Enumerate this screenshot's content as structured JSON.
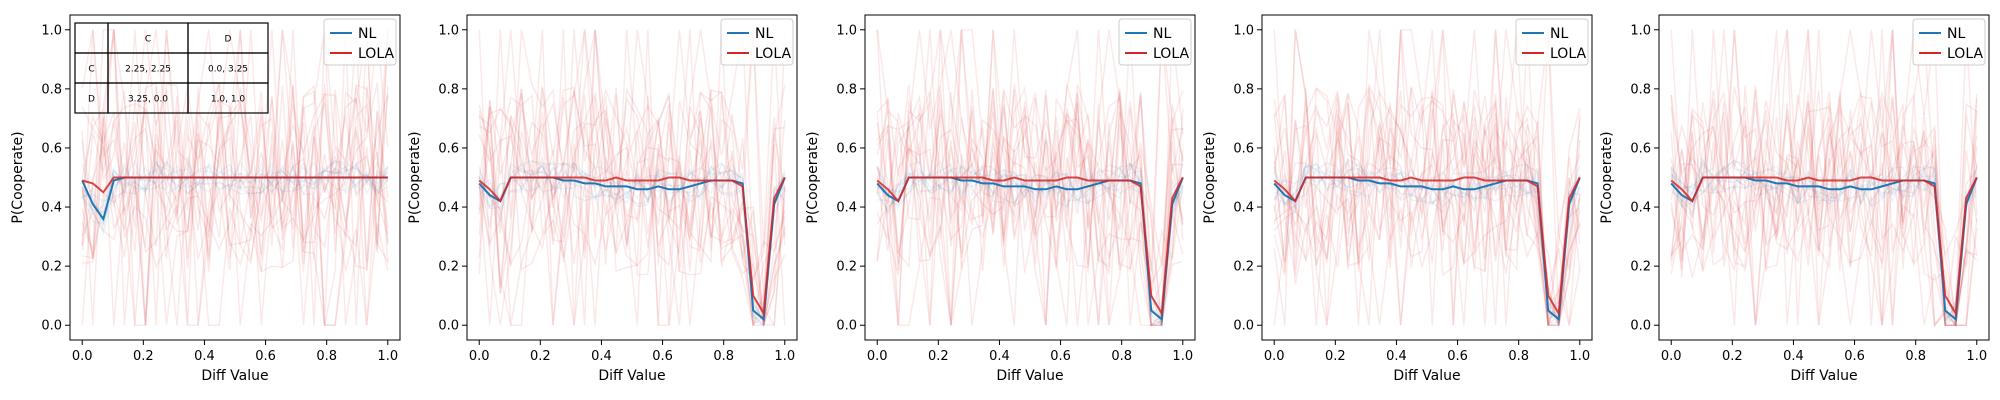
{
  "chart_data": [
    {
      "type": "line",
      "xlabel": "Diff Value",
      "ylabel": "P(Cooperate)",
      "xlim": [
        -0.04,
        1.04
      ],
      "ylim": [
        -0.05,
        1.05
      ],
      "xticks": [
        "0.0",
        "0.2",
        "0.4",
        "0.6",
        "0.8",
        "1.0"
      ],
      "yticks": [
        "0.0",
        "0.2",
        "0.4",
        "0.6",
        "0.8",
        "1.0"
      ],
      "legend": {
        "position": "top-right",
        "entries": [
          "NL",
          "LOLA"
        ]
      },
      "colors": {
        "NL": "#1f77b4",
        "LOLA": "#d62728"
      },
      "x": [
        0.0,
        0.0345,
        0.069,
        0.1034,
        0.1379,
        0.1724,
        0.2069,
        0.2414,
        0.2759,
        0.3103,
        0.3448,
        0.3793,
        0.4138,
        0.4483,
        0.4828,
        0.5172,
        0.5517,
        0.5862,
        0.6207,
        0.6552,
        0.6897,
        0.7241,
        0.7586,
        0.7931,
        0.8276,
        0.8621,
        0.8966,
        0.931,
        0.9655,
        1.0
      ],
      "series": [
        {
          "name": "NL",
          "values": [
            0.49,
            0.41,
            0.36,
            0.49,
            0.5,
            0.5,
            0.5,
            0.5,
            0.5,
            0.5,
            0.5,
            0.5,
            0.5,
            0.5,
            0.5,
            0.5,
            0.5,
            0.5,
            0.5,
            0.5,
            0.5,
            0.5,
            0.5,
            0.5,
            0.5,
            0.5,
            0.5,
            0.5,
            0.5,
            0.5
          ]
        },
        {
          "name": "LOLA",
          "values": [
            0.49,
            0.48,
            0.45,
            0.5,
            0.5,
            0.5,
            0.5,
            0.5,
            0.5,
            0.5,
            0.5,
            0.5,
            0.5,
            0.5,
            0.5,
            0.5,
            0.5,
            0.5,
            0.5,
            0.5,
            0.5,
            0.5,
            0.5,
            0.5,
            0.5,
            0.5,
            0.5,
            0.5,
            0.5,
            0.5
          ]
        }
      ],
      "inset_table": {
        "header": [
          "",
          "C",
          "D"
        ],
        "rows": [
          [
            "C",
            "2.25, 2.25",
            "0.0, 3.25"
          ],
          [
            "D",
            "3.25, 0.0",
            "1.0, 1.0"
          ]
        ]
      }
    },
    {
      "type": "line",
      "xlabel": "Diff Value",
      "ylabel": "P(Cooperate)",
      "xlim": [
        -0.04,
        1.04
      ],
      "ylim": [
        -0.05,
        1.05
      ],
      "xticks": [
        "0.0",
        "0.2",
        "0.4",
        "0.6",
        "0.8",
        "1.0"
      ],
      "yticks": [
        "0.0",
        "0.2",
        "0.4",
        "0.6",
        "0.8",
        "1.0"
      ],
      "legend": {
        "position": "top-right",
        "entries": [
          "NL",
          "LOLA"
        ]
      },
      "colors": {
        "NL": "#1f77b4",
        "LOLA": "#d62728"
      },
      "x": [
        0.0,
        0.0345,
        0.069,
        0.1034,
        0.1379,
        0.1724,
        0.2069,
        0.2414,
        0.2759,
        0.3103,
        0.3448,
        0.3793,
        0.4138,
        0.4483,
        0.4828,
        0.5172,
        0.5517,
        0.5862,
        0.6207,
        0.6552,
        0.6897,
        0.7241,
        0.7586,
        0.7931,
        0.8276,
        0.8621,
        0.8966,
        0.931,
        0.9655,
        1.0
      ],
      "series": [
        {
          "name": "NL",
          "values": [
            0.48,
            0.44,
            0.42,
            0.5,
            0.5,
            0.5,
            0.5,
            0.5,
            0.49,
            0.49,
            0.48,
            0.48,
            0.47,
            0.47,
            0.47,
            0.46,
            0.46,
            0.47,
            0.46,
            0.46,
            0.47,
            0.48,
            0.49,
            0.49,
            0.49,
            0.48,
            0.05,
            0.02,
            0.41,
            0.5
          ]
        },
        {
          "name": "LOLA",
          "values": [
            0.49,
            0.46,
            0.42,
            0.5,
            0.5,
            0.5,
            0.5,
            0.5,
            0.5,
            0.5,
            0.5,
            0.49,
            0.49,
            0.5,
            0.49,
            0.49,
            0.49,
            0.49,
            0.5,
            0.5,
            0.49,
            0.49,
            0.49,
            0.49,
            0.49,
            0.47,
            0.1,
            0.04,
            0.43,
            0.5
          ]
        }
      ]
    },
    {
      "type": "line",
      "xlabel": "Diff Value",
      "ylabel": "P(Cooperate)",
      "xlim": [
        -0.04,
        1.04
      ],
      "ylim": [
        -0.05,
        1.05
      ],
      "xticks": [
        "0.0",
        "0.2",
        "0.4",
        "0.6",
        "0.8",
        "1.0"
      ],
      "yticks": [
        "0.0",
        "0.2",
        "0.4",
        "0.6",
        "0.8",
        "1.0"
      ],
      "legend": {
        "position": "top-right",
        "entries": [
          "NL",
          "LOLA"
        ]
      },
      "colors": {
        "NL": "#1f77b4",
        "LOLA": "#d62728"
      },
      "x": [
        0.0,
        0.0345,
        0.069,
        0.1034,
        0.1379,
        0.1724,
        0.2069,
        0.2414,
        0.2759,
        0.3103,
        0.3448,
        0.3793,
        0.4138,
        0.4483,
        0.4828,
        0.5172,
        0.5517,
        0.5862,
        0.6207,
        0.6552,
        0.6897,
        0.7241,
        0.7586,
        0.7931,
        0.8276,
        0.8621,
        0.8966,
        0.931,
        0.9655,
        1.0
      ],
      "series": [
        {
          "name": "NL",
          "values": [
            0.48,
            0.44,
            0.42,
            0.5,
            0.5,
            0.5,
            0.5,
            0.5,
            0.49,
            0.49,
            0.48,
            0.48,
            0.47,
            0.47,
            0.47,
            0.46,
            0.46,
            0.47,
            0.46,
            0.46,
            0.47,
            0.48,
            0.49,
            0.49,
            0.49,
            0.48,
            0.05,
            0.02,
            0.41,
            0.5
          ]
        },
        {
          "name": "LOLA",
          "values": [
            0.49,
            0.46,
            0.42,
            0.5,
            0.5,
            0.5,
            0.5,
            0.5,
            0.5,
            0.5,
            0.5,
            0.49,
            0.49,
            0.5,
            0.49,
            0.49,
            0.49,
            0.49,
            0.5,
            0.5,
            0.49,
            0.49,
            0.49,
            0.49,
            0.49,
            0.47,
            0.1,
            0.04,
            0.43,
            0.5
          ]
        }
      ]
    },
    {
      "type": "line",
      "xlabel": "Diff Value",
      "ylabel": "P(Cooperate)",
      "xlim": [
        -0.04,
        1.04
      ],
      "ylim": [
        -0.05,
        1.05
      ],
      "xticks": [
        "0.0",
        "0.2",
        "0.4",
        "0.6",
        "0.8",
        "1.0"
      ],
      "yticks": [
        "0.0",
        "0.2",
        "0.4",
        "0.6",
        "0.8",
        "1.0"
      ],
      "legend": {
        "position": "top-right",
        "entries": [
          "NL",
          "LOLA"
        ]
      },
      "colors": {
        "NL": "#1f77b4",
        "LOLA": "#d62728"
      },
      "x": [
        0.0,
        0.0345,
        0.069,
        0.1034,
        0.1379,
        0.1724,
        0.2069,
        0.2414,
        0.2759,
        0.3103,
        0.3448,
        0.3793,
        0.4138,
        0.4483,
        0.4828,
        0.5172,
        0.5517,
        0.5862,
        0.6207,
        0.6552,
        0.6897,
        0.7241,
        0.7586,
        0.7931,
        0.8276,
        0.8621,
        0.8966,
        0.931,
        0.9655,
        1.0
      ],
      "series": [
        {
          "name": "NL",
          "values": [
            0.48,
            0.44,
            0.42,
            0.5,
            0.5,
            0.5,
            0.5,
            0.5,
            0.49,
            0.49,
            0.48,
            0.48,
            0.47,
            0.47,
            0.47,
            0.46,
            0.46,
            0.47,
            0.46,
            0.46,
            0.47,
            0.48,
            0.49,
            0.49,
            0.49,
            0.48,
            0.05,
            0.02,
            0.41,
            0.5
          ]
        },
        {
          "name": "LOLA",
          "values": [
            0.49,
            0.46,
            0.42,
            0.5,
            0.5,
            0.5,
            0.5,
            0.5,
            0.5,
            0.5,
            0.5,
            0.49,
            0.49,
            0.5,
            0.49,
            0.49,
            0.49,
            0.49,
            0.5,
            0.5,
            0.49,
            0.49,
            0.49,
            0.49,
            0.49,
            0.47,
            0.1,
            0.04,
            0.43,
            0.5
          ]
        }
      ]
    },
    {
      "type": "line",
      "xlabel": "Diff Value",
      "ylabel": "P(Cooperate)",
      "xlim": [
        -0.04,
        1.04
      ],
      "ylim": [
        -0.05,
        1.05
      ],
      "xticks": [
        "0.0",
        "0.2",
        "0.4",
        "0.6",
        "0.8",
        "1.0"
      ],
      "yticks": [
        "0.0",
        "0.2",
        "0.4",
        "0.6",
        "0.8",
        "1.0"
      ],
      "legend": {
        "position": "top-right",
        "entries": [
          "NL",
          "LOLA"
        ]
      },
      "colors": {
        "NL": "#1f77b4",
        "LOLA": "#d62728"
      },
      "x": [
        0.0,
        0.0345,
        0.069,
        0.1034,
        0.1379,
        0.1724,
        0.2069,
        0.2414,
        0.2759,
        0.3103,
        0.3448,
        0.3793,
        0.4138,
        0.4483,
        0.4828,
        0.5172,
        0.5517,
        0.5862,
        0.6207,
        0.6552,
        0.6897,
        0.7241,
        0.7586,
        0.7931,
        0.8276,
        0.8621,
        0.8966,
        0.931,
        0.9655,
        1.0
      ],
      "series": [
        {
          "name": "NL",
          "values": [
            0.48,
            0.44,
            0.42,
            0.5,
            0.5,
            0.5,
            0.5,
            0.5,
            0.49,
            0.49,
            0.48,
            0.48,
            0.47,
            0.47,
            0.47,
            0.46,
            0.46,
            0.47,
            0.46,
            0.46,
            0.47,
            0.48,
            0.49,
            0.49,
            0.49,
            0.48,
            0.05,
            0.02,
            0.41,
            0.5
          ]
        },
        {
          "name": "LOLA",
          "values": [
            0.49,
            0.46,
            0.42,
            0.5,
            0.5,
            0.5,
            0.5,
            0.5,
            0.5,
            0.5,
            0.5,
            0.49,
            0.49,
            0.5,
            0.49,
            0.49,
            0.49,
            0.49,
            0.5,
            0.5,
            0.49,
            0.49,
            0.49,
            0.49,
            0.49,
            0.47,
            0.1,
            0.04,
            0.43,
            0.5
          ]
        }
      ]
    }
  ]
}
